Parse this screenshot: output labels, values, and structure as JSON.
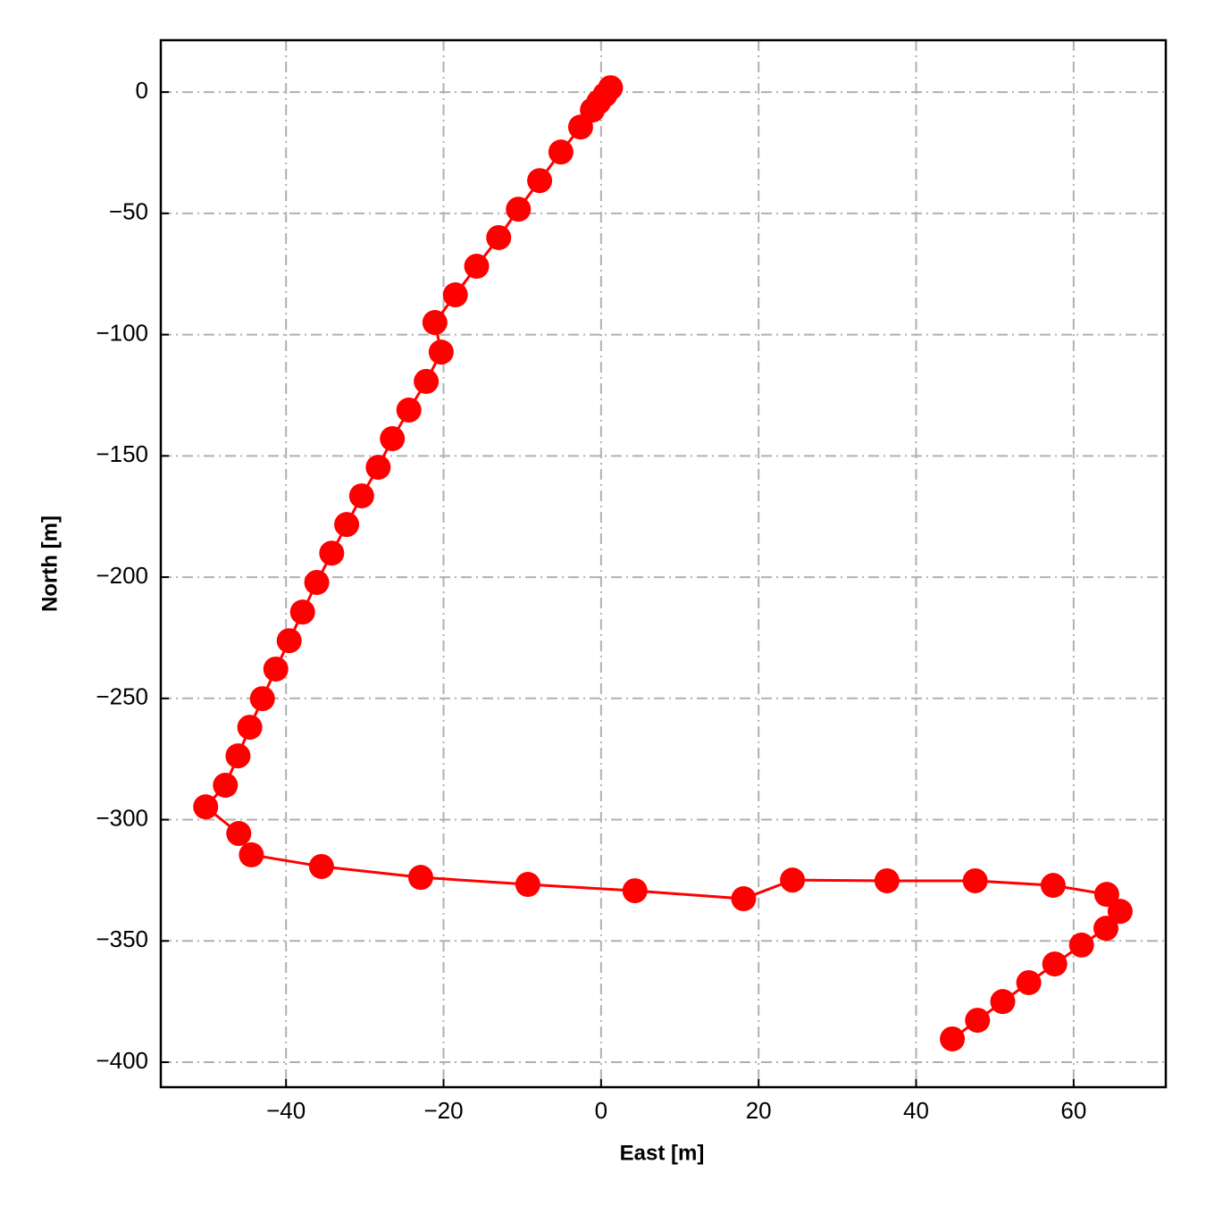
{
  "chart_data": {
    "type": "line",
    "x_label": "East [m]",
    "y_label": "North [m]",
    "x": [
      1.2,
      0.5,
      -0.3,
      -1.1,
      -2.6,
      -5.1,
      -7.8,
      -10.5,
      -13.0,
      -15.8,
      -18.5,
      -21.1,
      -20.3,
      -22.2,
      -24.4,
      -26.5,
      -28.3,
      -30.4,
      -32.3,
      -34.2,
      -36.1,
      -37.9,
      -39.6,
      -41.3,
      -43.0,
      -44.6,
      -46.1,
      -47.7,
      -50.2,
      -46.0,
      -44.4,
      -35.5,
      -22.9,
      -9.3,
      4.3,
      18.1,
      24.3,
      36.3,
      47.5,
      57.4,
      64.2,
      65.9,
      64.1,
      61.0,
      57.6,
      54.3,
      51.0,
      47.8,
      44.6
    ],
    "series": [
      {
        "color": "#ff0000",
        "values": [
          1.8,
          -1.1,
          -4.1,
          -7.4,
          -14.4,
          -24.7,
          -36.5,
          -48.3,
          -60.0,
          -71.8,
          -83.6,
          -95.0,
          -107.2,
          -119.3,
          -131.1,
          -142.9,
          -154.7,
          -166.5,
          -178.3,
          -190.1,
          -202.2,
          -214.4,
          -226.2,
          -237.9,
          -250.1,
          -261.9,
          -273.7,
          -285.8,
          -294.7,
          -305.7,
          -314.5,
          -319.3,
          -323.8,
          -326.7,
          -329.3,
          -332.6,
          -324.9,
          -325.2,
          -325.2,
          -327.1,
          -330.8,
          -337.8,
          -344.8,
          -351.7,
          -359.5,
          -367.2,
          -375.0,
          -382.7,
          -390.4
        ]
      }
    ],
    "xlim": [
      -55.9,
      71.7
    ],
    "ylim": [
      -410.3,
      21.4
    ],
    "xticks": [
      {
        "value": -40,
        "label": "−40"
      },
      {
        "value": -20,
        "label": "−20"
      },
      0,
      20,
      40,
      60
    ],
    "yticks": [
      0,
      {
        "value": -50,
        "label": "−50"
      },
      {
        "value": -100,
        "label": "−100"
      },
      {
        "value": -150,
        "label": "−150"
      },
      {
        "value": -200,
        "label": "−200"
      },
      {
        "value": -250,
        "label": "−250"
      },
      {
        "value": -300,
        "label": "−300"
      },
      {
        "value": -350,
        "label": "−350"
      },
      {
        "value": -400,
        "label": "−400"
      }
    ],
    "grid": true
  }
}
